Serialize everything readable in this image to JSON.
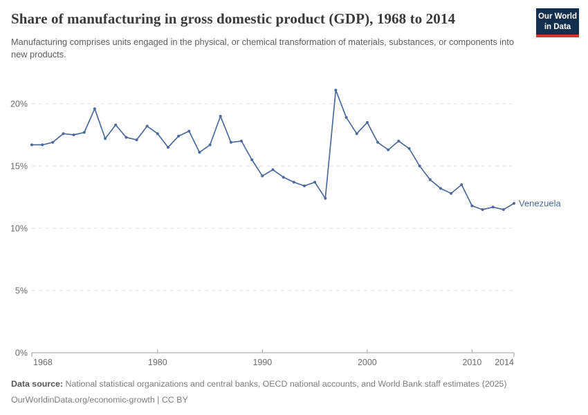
{
  "header": {
    "title": "Share of manufacturing in gross domestic product (GDP), 1968 to 2014",
    "subtitle": "Manufacturing comprises units engaged in the physical, or chemical transformation of materials, substances, or components into new products.",
    "logo": {
      "line1": "Our World",
      "line2": "in Data",
      "bg_color": "#12304e",
      "stripe_color": "#d5352c"
    }
  },
  "chart_data": {
    "type": "line",
    "title": "Share of manufacturing in gross domestic product (GDP), 1968 to 2014",
    "xlabel": "",
    "ylabel": "",
    "xlim": [
      1968,
      2014
    ],
    "ylim": [
      0,
      22
    ],
    "grid": "horizontal-dashed",
    "legend_position": "end-of-line-label",
    "x_ticks": [
      1968,
      1980,
      1990,
      2000,
      2010,
      2014
    ],
    "y_ticks": [
      0,
      5,
      10,
      15,
      20
    ],
    "y_tick_suffix": "%",
    "entity_label": "Venezuela",
    "series": [
      {
        "name": "Venezuela",
        "color": "#4c6a9c",
        "x": [
          1968,
          1969,
          1970,
          1971,
          1972,
          1973,
          1974,
          1975,
          1976,
          1977,
          1978,
          1979,
          1980,
          1981,
          1982,
          1983,
          1984,
          1985,
          1986,
          1987,
          1988,
          1989,
          1990,
          1991,
          1992,
          1993,
          1994,
          1995,
          1996,
          1997,
          1998,
          1999,
          2000,
          2001,
          2002,
          2003,
          2004,
          2005,
          2006,
          2007,
          2008,
          2009,
          2010,
          2011,
          2012,
          2013,
          2014
        ],
        "values": [
          16.7,
          16.7,
          16.9,
          17.6,
          17.5,
          17.7,
          19.6,
          17.2,
          18.3,
          17.3,
          17.1,
          18.2,
          17.6,
          16.5,
          17.4,
          17.8,
          16.1,
          16.7,
          19.0,
          16.9,
          17.0,
          15.5,
          14.2,
          14.7,
          14.1,
          13.7,
          13.4,
          13.7,
          12.4,
          21.1,
          18.9,
          17.6,
          18.5,
          16.9,
          16.3,
          17.0,
          16.4,
          15.0,
          13.9,
          13.2,
          12.8,
          13.5,
          11.8,
          11.5,
          11.7,
          11.5,
          12.0
        ]
      }
    ],
    "colors": {
      "line": "#4c6a9c",
      "gridline": "#e0e0e0",
      "axis": "#9e9e9e",
      "tick_label": "#6d6d6d"
    }
  },
  "footer": {
    "data_source_label": "Data source:",
    "data_source_text": "National statistical organizations and central banks, OECD national accounts, and World Bank staff estimates (2025)",
    "link_line": "OurWorldinData.org/economic-growth | CC BY"
  }
}
